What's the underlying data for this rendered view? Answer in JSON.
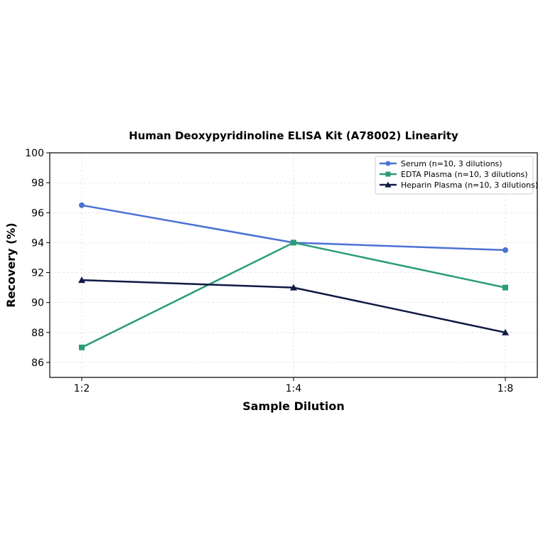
{
  "chart_data": {
    "type": "line",
    "title": "Human Deoxypyridinoline ELISA Kit (A78002) Linearity",
    "xlabel": "Sample Dilution",
    "ylabel": "Recovery (%)",
    "categories": [
      "1:2",
      "1:4",
      "1:8"
    ],
    "ylim": [
      85,
      100
    ],
    "yticks": [
      86,
      88,
      90,
      92,
      94,
      96,
      98,
      100
    ],
    "grid": true,
    "legend_position": "top-right",
    "series": [
      {
        "name": "Serum (n=10, 3 dilutions)",
        "values": [
          96.5,
          94.0,
          93.5
        ],
        "color": "#4a72d4",
        "marker": "circle"
      },
      {
        "name": "EDTA Plasma (n=10, 3 dilutions)",
        "values": [
          87.0,
          94.0,
          91.0
        ],
        "color": "#2a9d74",
        "marker": "square"
      },
      {
        "name": "Heparin Plasma (n=10, 3 dilutions)",
        "values": [
          91.5,
          91.0,
          88.0
        ],
        "color": "#0f1a45",
        "marker": "triangle"
      }
    ]
  }
}
